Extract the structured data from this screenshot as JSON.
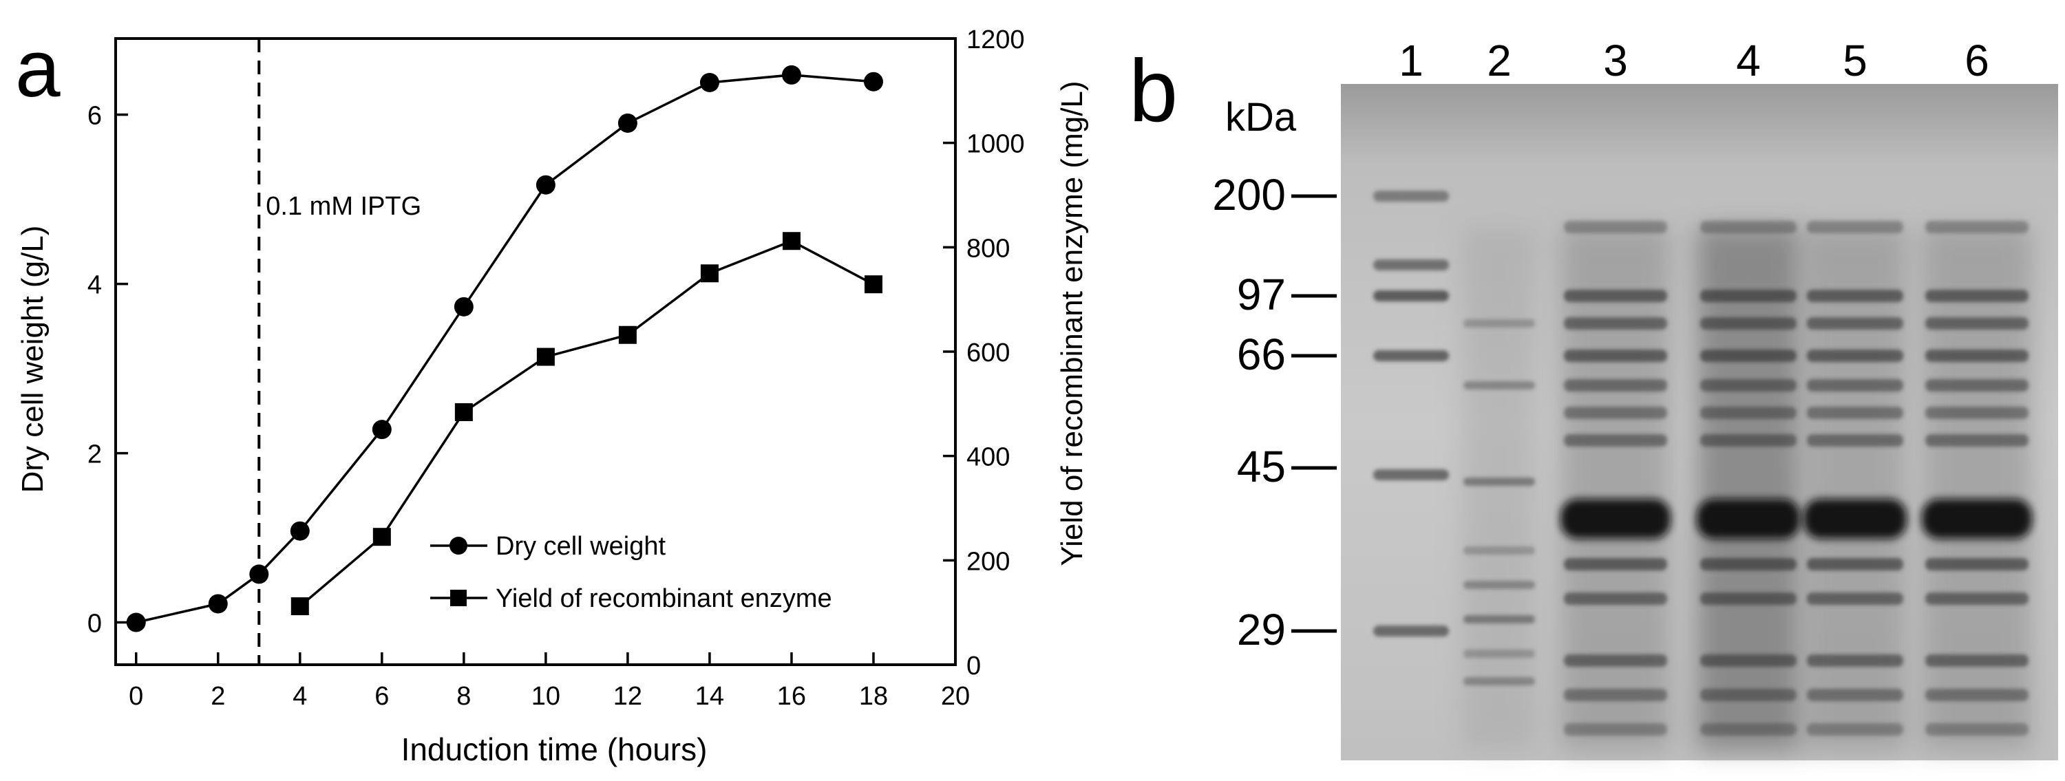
{
  "panels": {
    "a": {
      "label": "a"
    },
    "b": {
      "label": "b"
    }
  },
  "chart_data": [
    {
      "type": "line",
      "panel": "a",
      "xlabel": "Induction time (hours)",
      "ylabel": "Dry cell weight (g/L)",
      "y2label": "Yield of recombinant enzyme (mg/L)",
      "xlim": [
        -0.5,
        20
      ],
      "ylim": [
        -0.5,
        6.9
      ],
      "y2lim": [
        0,
        1200
      ],
      "xticks": [
        0,
        2,
        4,
        6,
        8,
        10,
        12,
        14,
        16,
        18,
        20
      ],
      "yticks": [
        0,
        2,
        4,
        6
      ],
      "y2ticks": [
        0,
        200,
        400,
        600,
        800,
        1000,
        1200
      ],
      "grid": false,
      "legend_position": "lower-right",
      "annotation": {
        "text": "0.1 mM IPTG",
        "x": 3
      },
      "series": [
        {
          "name": "Dry cell weight",
          "marker": "circle",
          "axis": "left",
          "x": [
            0,
            2,
            3,
            4,
            6,
            8,
            10,
            12,
            14,
            16,
            18
          ],
          "y": [
            0.0,
            0.22,
            0.57,
            1.08,
            2.28,
            3.73,
            5.17,
            5.9,
            6.38,
            6.47,
            6.39
          ]
        },
        {
          "name": "Yield of recombinant enzyme",
          "marker": "square",
          "axis": "right",
          "x": [
            4,
            6,
            8,
            10,
            12,
            14,
            16,
            18
          ],
          "y": [
            112,
            245,
            484,
            590,
            632,
            750,
            812,
            729
          ]
        }
      ]
    },
    {
      "type": "gel",
      "panel": "b",
      "unit_label": "kDa",
      "lanes": [
        "1",
        "2",
        "3",
        "4",
        "5",
        "6"
      ],
      "markers": [
        "200",
        "97",
        "66",
        "45",
        "29"
      ],
      "marker_lane": "1",
      "overexpressed_band_kda": "~42",
      "overexpressed_in_lanes": [
        "3",
        "4",
        "5",
        "6"
      ]
    }
  ]
}
